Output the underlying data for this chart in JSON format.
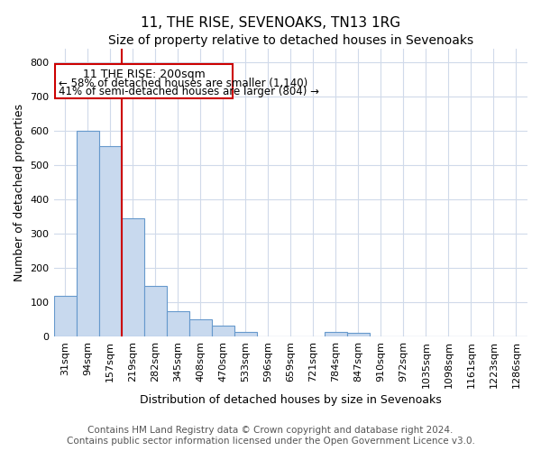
{
  "title": "11, THE RISE, SEVENOAKS, TN13 1RG",
  "subtitle": "Size of property relative to detached houses in Sevenoaks",
  "xlabel": "Distribution of detached houses by size in Sevenoaks",
  "ylabel": "Number of detached properties",
  "categories": [
    "31sqm",
    "94sqm",
    "157sqm",
    "219sqm",
    "282sqm",
    "345sqm",
    "408sqm",
    "470sqm",
    "533sqm",
    "596sqm",
    "659sqm",
    "721sqm",
    "784sqm",
    "847sqm",
    "910sqm",
    "972sqm",
    "1035sqm",
    "1098sqm",
    "1161sqm",
    "1223sqm",
    "1286sqm"
  ],
  "values": [
    120,
    600,
    555,
    345,
    148,
    73,
    50,
    33,
    13,
    0,
    0,
    0,
    13,
    10,
    0,
    0,
    0,
    0,
    0,
    0,
    0
  ],
  "bar_color": "#c8d9ee",
  "bar_edge_color": "#6699cc",
  "vline_x_index": 3,
  "vline_color": "#cc0000",
  "annotation_title": "11 THE RISE: 200sqm",
  "annotation_line1": "← 58% of detached houses are smaller (1,140)",
  "annotation_line2": "41% of semi-detached houses are larger (804) →",
  "annotation_box_color": "#ffffff",
  "annotation_box_edge": "#cc0000",
  "ylim": [
    0,
    840
  ],
  "yticks": [
    0,
    100,
    200,
    300,
    400,
    500,
    600,
    700,
    800
  ],
  "footer1": "Contains HM Land Registry data © Crown copyright and database right 2024.",
  "footer2": "Contains public sector information licensed under the Open Government Licence v3.0.",
  "background_color": "#ffffff",
  "grid_color": "#d0daea",
  "title_fontsize": 11,
  "subtitle_fontsize": 10,
  "axis_label_fontsize": 9,
  "tick_fontsize": 8,
  "footer_fontsize": 7.5,
  "ann_title_fontsize": 9,
  "ann_text_fontsize": 8.5
}
